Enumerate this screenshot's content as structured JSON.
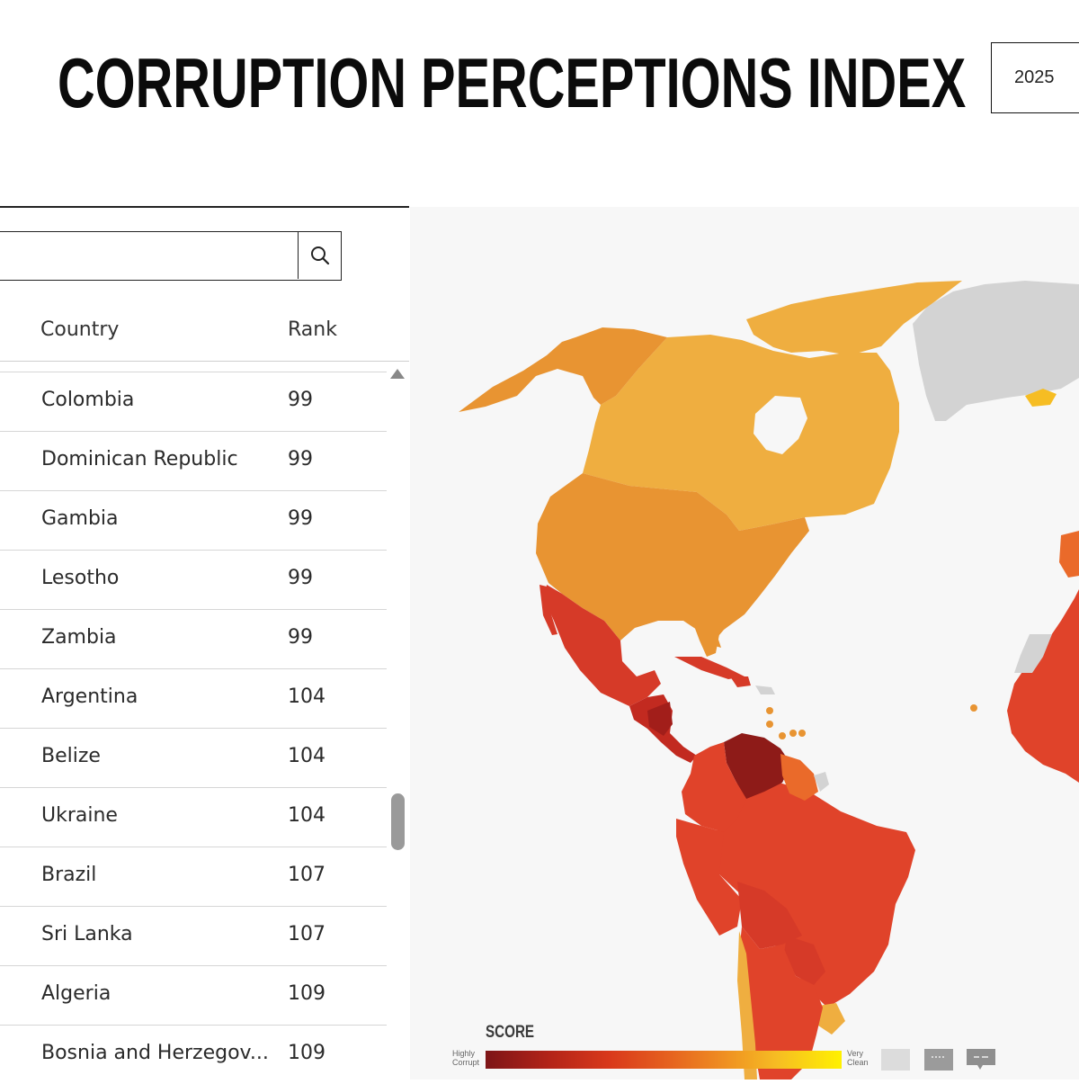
{
  "header": {
    "title": "CORRUPTION PERCEPTIONS INDEX",
    "year": "2025"
  },
  "search": {
    "placeholder": ""
  },
  "table": {
    "columns": [
      "Country",
      "Rank"
    ],
    "rows": [
      {
        "country": "Colombia",
        "rank": "99"
      },
      {
        "country": "Dominican Republic",
        "rank": "99"
      },
      {
        "country": "Gambia",
        "rank": "99"
      },
      {
        "country": "Lesotho",
        "rank": "99"
      },
      {
        "country": "Zambia",
        "rank": "99"
      },
      {
        "country": "Argentina",
        "rank": "104"
      },
      {
        "country": "Belize",
        "rank": "104"
      },
      {
        "country": "Ukraine",
        "rank": "104"
      },
      {
        "country": "Brazil",
        "rank": "107"
      },
      {
        "country": "Sri Lanka",
        "rank": "107"
      },
      {
        "country": "Algeria",
        "rank": "109"
      },
      {
        "country": "Bosnia and Herzegov...",
        "rank": "109"
      }
    ]
  },
  "legend": {
    "title": "SCORE",
    "low_label": "Highly Corrupt",
    "high_label": "Very Clean"
  },
  "colors": {
    "scale": [
      "#7d1517",
      "#b32418",
      "#d9391b",
      "#e6631f",
      "#ef8f22",
      "#f6bd23",
      "#fff100"
    ],
    "no_data": "#d3d3d3",
    "map_background": "#f7f7f7"
  }
}
